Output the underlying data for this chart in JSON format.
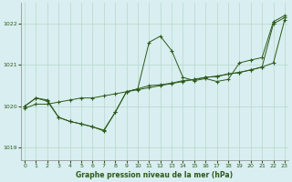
{
  "bg_color": "#d8eef0",
  "line_color": "#2d5a1b",
  "grid_color": "#b8d8c8",
  "xlabel": "Graphe pression niveau de la mer (hPa)",
  "ylim": [
    1018.7,
    1022.5
  ],
  "xlim": [
    -0.3,
    23.3
  ],
  "yticks": [
    1019,
    1020,
    1021,
    1022
  ],
  "xticks": [
    0,
    1,
    2,
    3,
    4,
    5,
    6,
    7,
    8,
    9,
    10,
    11,
    12,
    13,
    14,
    15,
    16,
    17,
    18,
    19,
    20,
    21,
    22,
    23
  ],
  "series_straight_x": [
    0,
    1,
    2,
    3,
    4,
    5,
    6,
    7,
    8,
    9,
    10,
    11,
    12,
    13,
    14,
    15,
    16,
    17,
    18,
    19,
    20,
    21,
    22,
    23
  ],
  "series_straight_y": [
    1019.95,
    1020.05,
    1020.05,
    1020.1,
    1020.15,
    1020.2,
    1020.2,
    1020.25,
    1020.3,
    1020.35,
    1020.4,
    1020.45,
    1020.5,
    1020.55,
    1020.6,
    1020.65,
    1020.7,
    1020.72,
    1020.78,
    1020.82,
    1020.88,
    1020.95,
    1021.05,
    1022.1
  ],
  "series_peak_x": [
    0,
    1,
    2,
    3,
    4,
    5,
    6,
    7,
    8,
    9,
    10,
    11,
    12,
    13,
    14,
    15,
    16,
    17,
    18,
    19,
    20,
    21,
    22,
    23
  ],
  "series_peak_y": [
    1020.0,
    1020.2,
    1020.15,
    1019.73,
    1019.63,
    1019.57,
    1019.5,
    1019.4,
    1019.85,
    1020.35,
    1020.42,
    1021.55,
    1021.7,
    1021.35,
    1020.7,
    1020.62,
    1020.67,
    1020.6,
    1020.65,
    1021.05,
    1021.12,
    1021.18,
    1022.05,
    1022.2
  ],
  "series_dip_x": [
    0,
    1,
    2,
    3,
    4,
    5,
    6,
    7,
    8,
    9,
    10,
    11,
    12,
    13,
    14,
    15,
    16,
    17,
    18,
    19,
    20,
    21,
    22,
    23
  ],
  "series_dip_y": [
    1020.0,
    1020.2,
    1020.12,
    1019.73,
    1019.63,
    1019.57,
    1019.5,
    1019.42,
    1019.85,
    1020.35,
    1020.42,
    1020.5,
    1020.52,
    1020.56,
    1020.62,
    1020.65,
    1020.7,
    1020.73,
    1020.78,
    1020.82,
    1020.88,
    1020.95,
    1022.0,
    1022.15
  ]
}
